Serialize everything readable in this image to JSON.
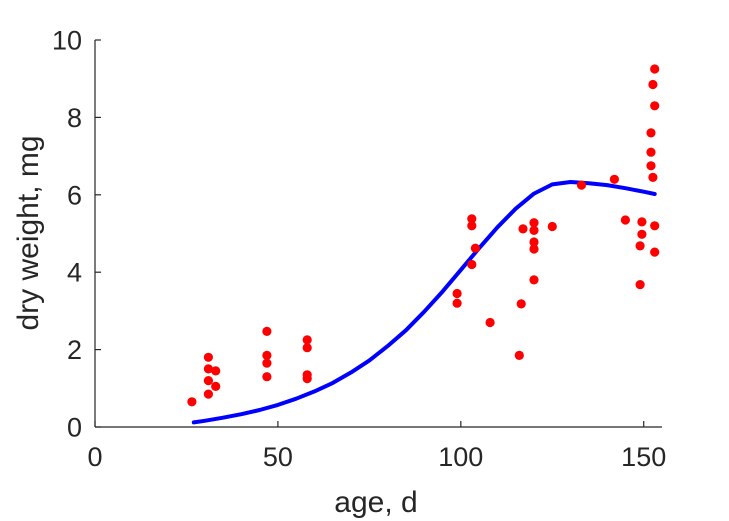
{
  "chart_data": {
    "type": "scatter",
    "xlabel": "age, d",
    "ylabel": "dry weight, mg",
    "xlim": [
      0,
      155
    ],
    "ylim": [
      0,
      10
    ],
    "xticks": [
      0,
      50,
      100,
      150
    ],
    "yticks": [
      0,
      2,
      4,
      6,
      8,
      10
    ],
    "grid": false,
    "series": [
      {
        "type": "scatter",
        "color": "#ff0000",
        "points": [
          [
            26.5,
            0.65
          ],
          [
            31,
            0.85
          ],
          [
            31,
            1.2
          ],
          [
            31,
            1.5
          ],
          [
            31,
            1.8
          ],
          [
            33,
            1.05
          ],
          [
            33,
            1.45
          ],
          [
            47,
            1.3
          ],
          [
            47,
            1.65
          ],
          [
            47,
            1.85
          ],
          [
            47,
            2.47
          ],
          [
            58,
            1.25
          ],
          [
            58,
            1.35
          ],
          [
            58,
            2.05
          ],
          [
            58,
            2.25
          ],
          [
            99,
            3.2
          ],
          [
            99,
            3.45
          ],
          [
            103,
            4.2
          ],
          [
            103,
            5.2
          ],
          [
            103,
            5.38
          ],
          [
            104,
            4.62
          ],
          [
            108,
            2.7
          ],
          [
            116,
            1.85
          ],
          [
            116.5,
            3.18
          ],
          [
            117,
            5.12
          ],
          [
            120,
            3.8
          ],
          [
            120,
            4.6
          ],
          [
            120,
            4.78
          ],
          [
            120,
            5.08
          ],
          [
            120,
            5.28
          ],
          [
            125,
            5.18
          ],
          [
            133,
            6.25
          ],
          [
            142,
            6.4
          ],
          [
            145,
            5.35
          ],
          [
            149,
            3.68
          ],
          [
            149,
            4.68
          ],
          [
            149.5,
            4.98
          ],
          [
            149.5,
            5.3
          ],
          [
            152,
            6.75
          ],
          [
            152,
            7.1
          ],
          [
            152,
            7.6
          ],
          [
            152.5,
            6.45
          ],
          [
            152.5,
            8.85
          ],
          [
            153,
            4.52
          ],
          [
            153,
            5.2
          ],
          [
            153,
            8.3
          ],
          [
            153,
            9.25
          ]
        ]
      },
      {
        "type": "line",
        "color": "#0000ff",
        "x": [
          27,
          30,
          35,
          40,
          45,
          50,
          55,
          60,
          65,
          70,
          75,
          80,
          85,
          90,
          95,
          100,
          105,
          110,
          115,
          120,
          125,
          130,
          135,
          140,
          145,
          150,
          153
        ],
        "y": [
          0.12,
          0.16,
          0.24,
          0.33,
          0.44,
          0.57,
          0.73,
          0.92,
          1.14,
          1.41,
          1.72,
          2.09,
          2.5,
          2.98,
          3.5,
          4.06,
          4.62,
          5.16,
          5.64,
          6.03,
          6.27,
          6.33,
          6.3,
          6.25,
          6.17,
          6.08,
          6.02
        ]
      }
    ]
  }
}
